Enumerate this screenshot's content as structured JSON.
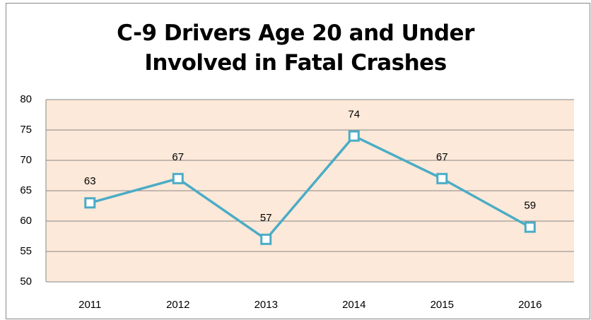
{
  "chart_data": {
    "type": "line",
    "title": "C-9 Drivers Age 20 and Under Involved in Fatal Crashes",
    "categories": [
      "2011",
      "2012",
      "2013",
      "2014",
      "2015",
      "2016"
    ],
    "series": [
      {
        "color": "#4bacc6",
        "values": [
          63,
          67,
          57,
          74,
          67,
          59
        ]
      }
    ],
    "ylim": [
      50,
      80
    ],
    "yticks": [
      50,
      55,
      60,
      65,
      70,
      75,
      80
    ],
    "grid": true,
    "plot_background": "#fde9d9"
  }
}
